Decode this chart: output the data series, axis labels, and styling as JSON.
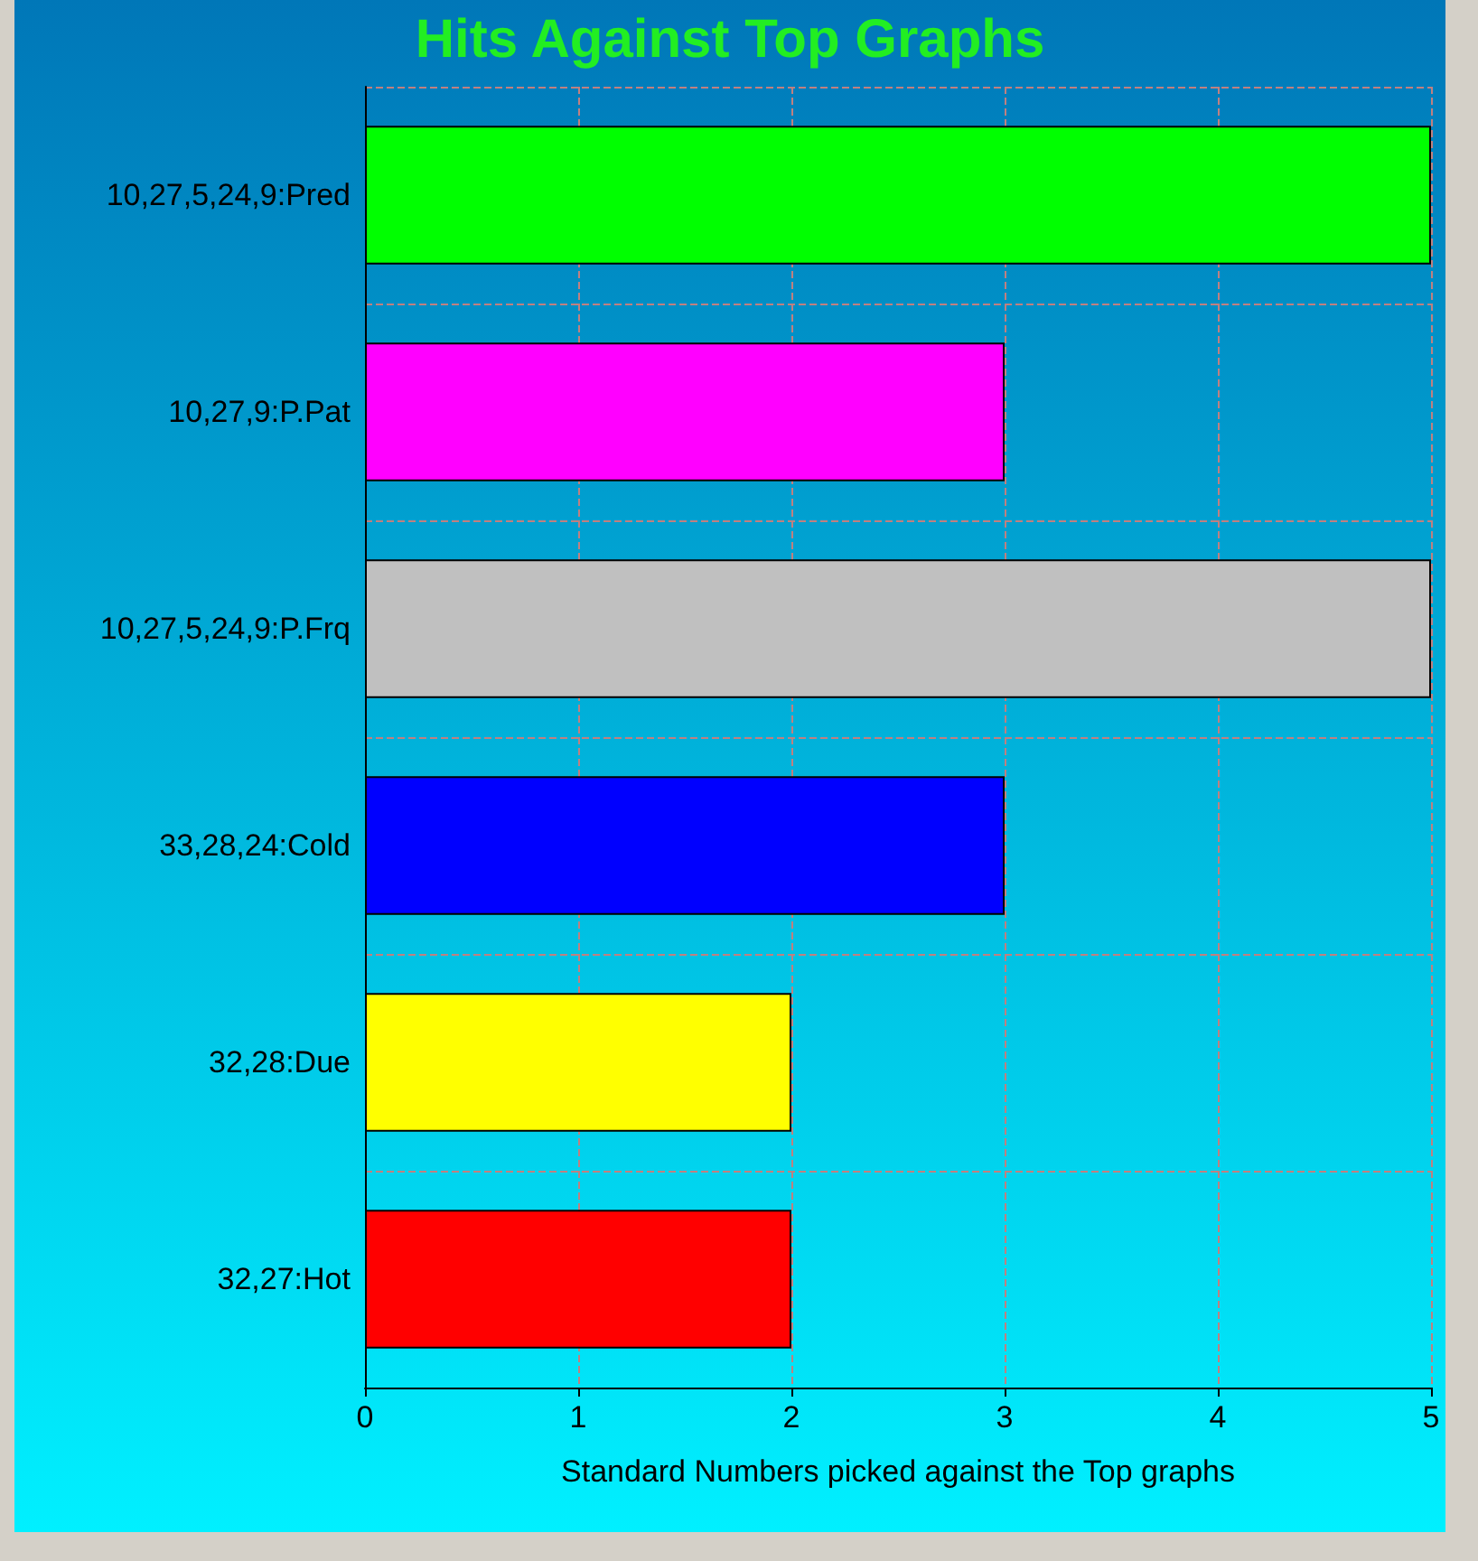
{
  "chart_data": {
    "type": "bar",
    "orientation": "horizontal",
    "title": "Hits Against Top Graphs",
    "xlabel": "Standard Numbers picked against the Top graphs",
    "categories": [
      "10,27,5,24,9:Pred",
      "10,27,9:P.Pat",
      "10,27,5,24,9:P.Frq",
      "33,28,24:Cold",
      "32,28:Due",
      "32,27:Hot"
    ],
    "values": [
      5,
      3,
      5,
      3,
      2,
      2
    ],
    "colors": [
      "#00ff00",
      "#ff00ff",
      "#c0c0c0",
      "#0000ff",
      "#ffff00",
      "#ff0000"
    ],
    "xlim": [
      0,
      5
    ],
    "xticks": [
      0,
      1,
      2,
      3,
      4,
      5
    ],
    "grid": true
  }
}
